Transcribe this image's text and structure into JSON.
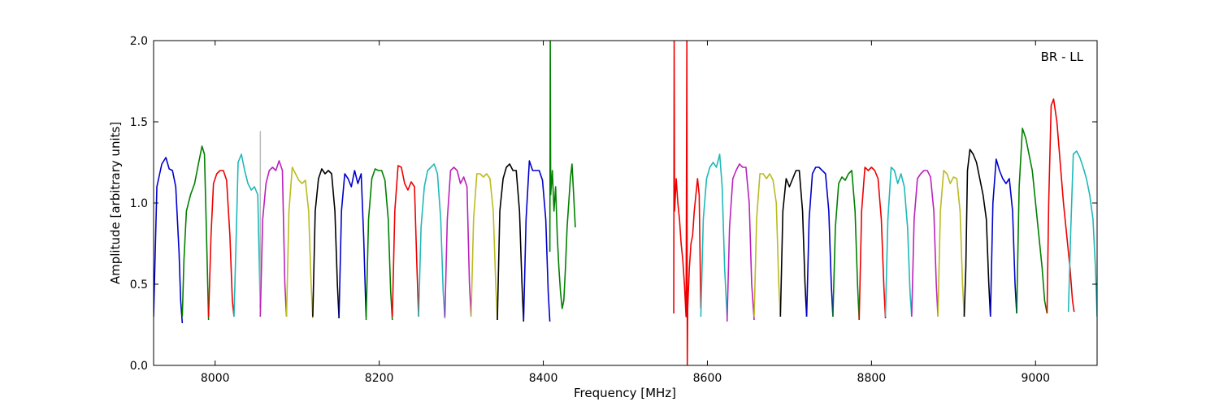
{
  "chart_data": {
    "type": "line",
    "title": "",
    "annotation": "BR - LL",
    "xlabel": "Frequency [MHz]",
    "ylabel": "Amplitude [arbitrary units]",
    "xlim": [
      7925,
      9075
    ],
    "ylim": [
      0,
      2.0
    ],
    "x_ticks": [
      8000,
      8200,
      8400,
      8600,
      8800,
      9000
    ],
    "x_tick_labels": [
      "8000",
      "8200",
      "8400",
      "8600",
      "8800",
      "9000"
    ],
    "y_ticks": [
      0.0,
      0.5,
      1.0,
      1.5,
      2.0
    ],
    "y_tick_labels": [
      "0.0",
      "0.5",
      "1.0",
      "1.5",
      "2.0"
    ],
    "grid": false,
    "legend": "none",
    "colors": {
      "blue": "#0000cc",
      "green": "#008000",
      "red": "#ee0000",
      "cyan": "#20b8b8",
      "magenta": "#bb22bb",
      "olive": "#bbbb22",
      "black": "#000000",
      "gray": "#bbbbbb"
    },
    "series": [
      {
        "color": "blue",
        "x": [
          7925,
          7929,
          7935,
          7940,
          7944,
          7948,
          7952,
          7956,
          7958,
          7960
        ],
        "y": [
          0.3,
          1.1,
          1.24,
          1.28,
          1.21,
          1.2,
          1.1,
          0.7,
          0.4,
          0.26
        ]
      },
      {
        "color": "green",
        "x": [
          7960,
          7962,
          7965,
          7970,
          7975,
          7980,
          7984,
          7987,
          7990,
          7992
        ],
        "y": [
          0.3,
          0.65,
          0.95,
          1.05,
          1.12,
          1.25,
          1.35,
          1.3,
          0.7,
          0.28
        ]
      },
      {
        "color": "red",
        "x": [
          7992,
          7995,
          7998,
          8002,
          8006,
          8010,
          8014,
          8018,
          8021,
          8023
        ],
        "y": [
          0.3,
          0.8,
          1.12,
          1.18,
          1.2,
          1.2,
          1.14,
          0.8,
          0.4,
          0.3
        ]
      },
      {
        "color": "cyan",
        "x": [
          8023,
          8026,
          8028,
          8032,
          8036,
          8040,
          8044,
          8048,
          8052,
          8055
        ],
        "y": [
          0.3,
          0.85,
          1.25,
          1.3,
          1.2,
          1.12,
          1.08,
          1.1,
          1.05,
          0.35
        ]
      },
      {
        "color": "gray",
        "x": [
          8055,
          8055.1,
          8055.2
        ],
        "y": [
          0.38,
          1.44,
          0.4
        ]
      },
      {
        "color": "magenta",
        "x": [
          8055,
          8058,
          8062,
          8066,
          8070,
          8074,
          8078,
          8082,
          8085,
          8087
        ],
        "y": [
          0.3,
          0.9,
          1.12,
          1.2,
          1.22,
          1.2,
          1.26,
          1.2,
          0.5,
          0.3
        ]
      },
      {
        "color": "olive",
        "x": [
          8087,
          8090,
          8094,
          8098,
          8102,
          8106,
          8110,
          8114,
          8117,
          8119
        ],
        "y": [
          0.3,
          0.95,
          1.22,
          1.18,
          1.14,
          1.12,
          1.14,
          0.95,
          0.5,
          0.29
        ]
      },
      {
        "color": "black",
        "x": [
          8119,
          8122,
          8126,
          8130,
          8134,
          8138,
          8142,
          8146,
          8149,
          8151
        ],
        "y": [
          0.3,
          0.95,
          1.15,
          1.21,
          1.18,
          1.2,
          1.18,
          0.95,
          0.5,
          0.29
        ]
      },
      {
        "color": "blue",
        "x": [
          8151,
          8154,
          8158,
          8162,
          8166,
          8170,
          8174,
          8178,
          8181,
          8184
        ],
        "y": [
          0.3,
          0.95,
          1.18,
          1.15,
          1.1,
          1.2,
          1.12,
          1.18,
          0.8,
          0.3
        ]
      },
      {
        "color": "green",
        "x": [
          8184,
          8187,
          8191,
          8195,
          8199,
          8203,
          8207,
          8211,
          8214,
          8216
        ],
        "y": [
          0.28,
          0.9,
          1.15,
          1.21,
          1.2,
          1.2,
          1.14,
          0.9,
          0.45,
          0.28
        ]
      },
      {
        "color": "red",
        "x": [
          8216,
          8219,
          8223,
          8227,
          8231,
          8235,
          8239,
          8243,
          8246,
          8248
        ],
        "y": [
          0.3,
          0.95,
          1.23,
          1.22,
          1.12,
          1.08,
          1.13,
          1.1,
          0.6,
          0.3
        ]
      },
      {
        "color": "cyan",
        "x": [
          8248,
          8251,
          8255,
          8259,
          8263,
          8267,
          8271,
          8275,
          8278,
          8280
        ],
        "y": [
          0.3,
          0.85,
          1.1,
          1.2,
          1.22,
          1.24,
          1.18,
          0.9,
          0.45,
          0.29
        ]
      },
      {
        "color": "magenta",
        "x": [
          8280,
          8283,
          8287,
          8291,
          8295,
          8299,
          8303,
          8307,
          8310,
          8312
        ],
        "y": [
          0.3,
          0.9,
          1.2,
          1.22,
          1.2,
          1.12,
          1.16,
          1.1,
          0.5,
          0.3
        ]
      },
      {
        "color": "olive",
        "x": [
          8312,
          8315,
          8319,
          8323,
          8327,
          8331,
          8335,
          8339,
          8342,
          8344
        ],
        "y": [
          0.3,
          0.9,
          1.18,
          1.18,
          1.16,
          1.18,
          1.15,
          0.95,
          0.5,
          0.28
        ]
      },
      {
        "color": "black",
        "x": [
          8344,
          8347,
          8351,
          8355,
          8359,
          8363,
          8367,
          8371,
          8374,
          8376
        ],
        "y": [
          0.28,
          0.95,
          1.15,
          1.22,
          1.24,
          1.2,
          1.2,
          0.95,
          0.5,
          0.27
        ]
      },
      {
        "color": "blue",
        "x": [
          8376,
          8379,
          8383,
          8387,
          8391,
          8395,
          8399,
          8403,
          8406,
          8408
        ],
        "y": [
          0.28,
          0.9,
          1.26,
          1.2,
          1.2,
          1.2,
          1.14,
          0.9,
          0.45,
          0.27
        ]
      },
      {
        "color": "green",
        "x": [
          8408,
          8408.5,
          8409,
          8411,
          8413,
          8415,
          8417,
          8419,
          8421,
          8423,
          8425,
          8427,
          8429,
          8431,
          8433,
          8435,
          8437,
          8439
        ],
        "y": [
          0.7,
          2.0,
          1.05,
          1.2,
          0.95,
          1.1,
          0.8,
          0.6,
          0.45,
          0.35,
          0.4,
          0.6,
          0.85,
          1.0,
          1.15,
          1.24,
          1.05,
          0.85
        ]
      },
      {
        "color": "red",
        "x": [
          8559,
          8559.5,
          8560,
          8562,
          8564,
          8566,
          8568,
          8570,
          8572,
          8574,
          8575,
          8575.5,
          8576,
          8578,
          8580,
          8582,
          8584,
          8586,
          8588,
          8590,
          8592
        ],
        "y": [
          0.32,
          2.0,
          0.95,
          1.15,
          1.0,
          0.9,
          0.75,
          0.65,
          0.5,
          0.3,
          2.0,
          0.0,
          0.35,
          0.6,
          0.75,
          0.8,
          0.95,
          1.05,
          1.15,
          1.05,
          0.35
        ]
      },
      {
        "color": "cyan",
        "x": [
          8592,
          8595,
          8599,
          8603,
          8607,
          8611,
          8615,
          8618,
          8621,
          8624
        ],
        "y": [
          0.3,
          0.9,
          1.15,
          1.22,
          1.25,
          1.22,
          1.3,
          1.1,
          0.6,
          0.3
        ]
      },
      {
        "color": "magenta",
        "x": [
          8624,
          8627,
          8631,
          8635,
          8639,
          8643,
          8647,
          8651,
          8654,
          8657
        ],
        "y": [
          0.27,
          0.85,
          1.15,
          1.2,
          1.24,
          1.22,
          1.22,
          1.0,
          0.5,
          0.28
        ]
      },
      {
        "color": "olive",
        "x": [
          8657,
          8660,
          8664,
          8668,
          8672,
          8676,
          8680,
          8684,
          8687,
          8689
        ],
        "y": [
          0.3,
          0.9,
          1.18,
          1.18,
          1.15,
          1.18,
          1.14,
          1.0,
          0.5,
          0.3
        ]
      },
      {
        "color": "black",
        "x": [
          8689,
          8692,
          8696,
          8700,
          8704,
          8708,
          8712,
          8716,
          8719,
          8721
        ],
        "y": [
          0.3,
          0.95,
          1.15,
          1.1,
          1.15,
          1.2,
          1.2,
          0.95,
          0.5,
          0.3
        ]
      },
      {
        "color": "blue",
        "x": [
          8721,
          8724,
          8728,
          8732,
          8736,
          8740,
          8744,
          8748,
          8751,
          8753
        ],
        "y": [
          0.3,
          0.9,
          1.18,
          1.22,
          1.22,
          1.2,
          1.18,
          0.95,
          0.5,
          0.3
        ]
      },
      {
        "color": "green",
        "x": [
          8753,
          8756,
          8760,
          8764,
          8768,
          8772,
          8776,
          8780,
          8783,
          8785
        ],
        "y": [
          0.3,
          0.85,
          1.12,
          1.16,
          1.14,
          1.18,
          1.2,
          0.95,
          0.5,
          0.28
        ]
      },
      {
        "color": "red",
        "x": [
          8785,
          8788,
          8792,
          8796,
          8800,
          8804,
          8808,
          8812,
          8815,
          8817
        ],
        "y": [
          0.28,
          0.95,
          1.22,
          1.2,
          1.22,
          1.2,
          1.15,
          0.9,
          0.5,
          0.29
        ]
      },
      {
        "color": "cyan",
        "x": [
          8817,
          8820,
          8824,
          8828,
          8832,
          8836,
          8840,
          8844,
          8847,
          8849
        ],
        "y": [
          0.3,
          0.9,
          1.22,
          1.2,
          1.12,
          1.18,
          1.1,
          0.85,
          0.45,
          0.3
        ]
      },
      {
        "color": "magenta",
        "x": [
          8849,
          8852,
          8856,
          8860,
          8864,
          8868,
          8872,
          8876,
          8879,
          8881
        ],
        "y": [
          0.3,
          0.9,
          1.15,
          1.18,
          1.2,
          1.2,
          1.16,
          0.95,
          0.5,
          0.3
        ]
      },
      {
        "color": "olive",
        "x": [
          8881,
          8884,
          8888,
          8892,
          8896,
          8900,
          8904,
          8908,
          8911,
          8913
        ],
        "y": [
          0.3,
          0.95,
          1.2,
          1.18,
          1.12,
          1.16,
          1.15,
          0.95,
          0.5,
          0.3
        ]
      },
      {
        "color": "black",
        "x": [
          8913,
          8915,
          8917,
          8920,
          8924,
          8928,
          8932,
          8936,
          8940,
          8943,
          8945
        ],
        "y": [
          0.3,
          0.6,
          1.2,
          1.33,
          1.3,
          1.25,
          1.15,
          1.05,
          0.9,
          0.5,
          0.3
        ]
      },
      {
        "color": "blue",
        "x": [
          8945,
          8948,
          8952,
          8956,
          8960,
          8964,
          8968,
          8972,
          8975,
          8977
        ],
        "y": [
          0.3,
          1.0,
          1.27,
          1.2,
          1.15,
          1.12,
          1.15,
          0.95,
          0.5,
          0.32
        ]
      },
      {
        "color": "green",
        "x": [
          8977,
          8980,
          8984,
          8988,
          8992,
          8996,
          9000,
          9004,
          9008,
          9011,
          9014
        ],
        "y": [
          0.32,
          1.1,
          1.46,
          1.4,
          1.3,
          1.2,
          1.0,
          0.8,
          0.6,
          0.4,
          0.32
        ]
      },
      {
        "color": "red",
        "x": [
          9014,
          9016,
          9019,
          9022,
          9026,
          9030,
          9034,
          9038,
          9042,
          9045,
          9047
        ],
        "y": [
          0.32,
          1.0,
          1.6,
          1.64,
          1.5,
          1.25,
          1.0,
          0.8,
          0.6,
          0.4,
          0.33
        ]
      },
      {
        "color": "cyan",
        "x": [
          9040,
          9043,
          9046,
          9050,
          9054,
          9058,
          9062,
          9066,
          9070,
          9073,
          9075
        ],
        "y": [
          0.33,
          0.85,
          1.3,
          1.32,
          1.28,
          1.22,
          1.15,
          1.05,
          0.9,
          0.6,
          0.3
        ]
      }
    ]
  }
}
